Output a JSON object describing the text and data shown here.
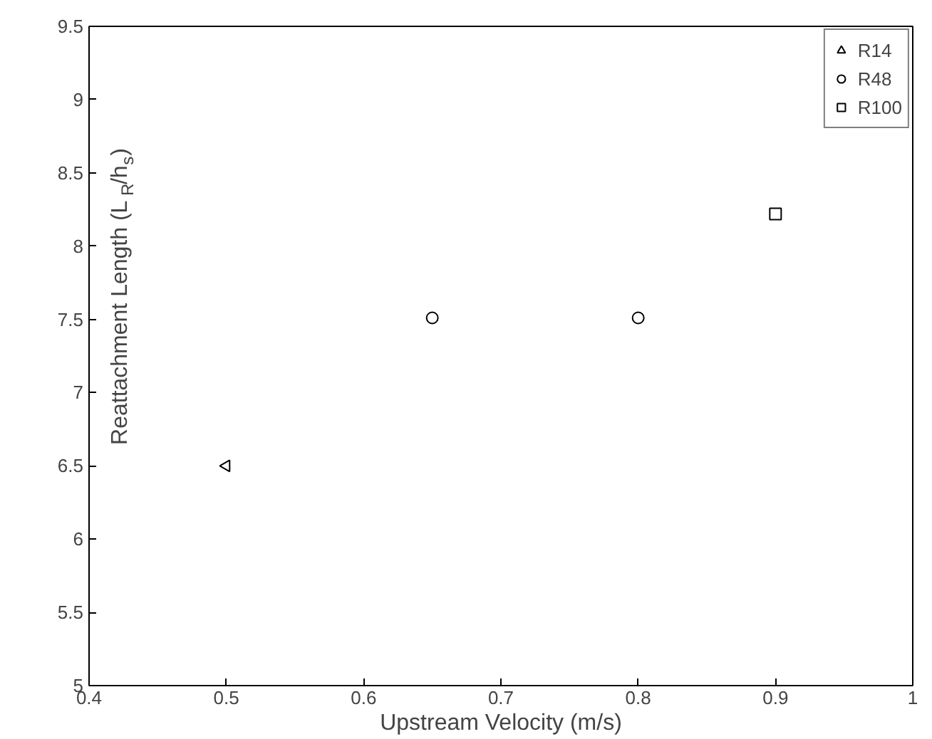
{
  "chart_data": {
    "type": "scatter",
    "xlabel": "Upstream Velocity (m/s)",
    "ylabel": "Reattachment Length (L$_{R}$/h$_{s}$)",
    "xlim": [
      0.4,
      1
    ],
    "ylim": [
      5,
      9.5
    ],
    "xticks": [
      0.4,
      0.5,
      0.6,
      0.7,
      0.8,
      0.9,
      1
    ],
    "yticks": [
      5,
      5.5,
      6,
      6.5,
      7,
      7.5,
      8,
      8.5,
      9,
      9.5
    ],
    "grid": false,
    "legend": "top right",
    "series": [
      {
        "name": "R14",
        "color": "#000000",
        "marker": "triangle",
        "x": [
          0.5
        ],
        "values": [
          6.5
        ]
      },
      {
        "name": "R48",
        "color": "#000000",
        "marker": "circle",
        "x": [
          0.65,
          0.8
        ],
        "values": [
          7.51,
          7.51
        ]
      },
      {
        "name": "R100",
        "color": "#000000",
        "marker": "square",
        "x": [
          0.9
        ],
        "values": [
          8.22
        ]
      }
    ]
  }
}
